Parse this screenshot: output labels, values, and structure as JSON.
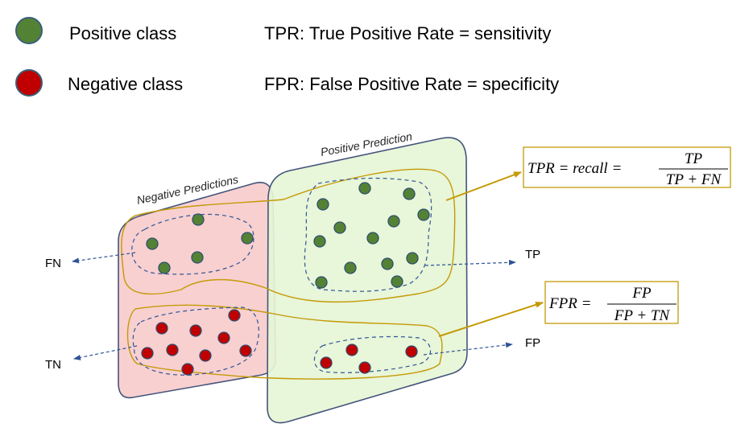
{
  "legend": {
    "positive_label": "Positive class",
    "negative_label": "Negative class",
    "tpr_definition": "TPR: True Positive Rate = sensitivity",
    "fpr_definition": "FPR: False Positive Rate = specificity"
  },
  "regions": {
    "negative_label": "Negative Predictions",
    "positive_label": "Positive Prediction"
  },
  "side_labels": {
    "fn": "FN",
    "tn": "TN",
    "tp": "TP",
    "fp": "FP"
  },
  "formulas": {
    "tpr": {
      "lhs": "TPR =  recall =",
      "numerator": "TP",
      "denominator": "TP + FN"
    },
    "fpr": {
      "lhs": "FPR =",
      "numerator": "FP",
      "denominator": "FP + TN"
    }
  },
  "colors": {
    "positive": "#548235",
    "negative": "#c00000",
    "negative_region": "#f8d0d0",
    "positive_region": "#e6f5d6",
    "region_border": "#44547a",
    "gold": "#c49a06",
    "dashed": "#2f5597"
  }
}
